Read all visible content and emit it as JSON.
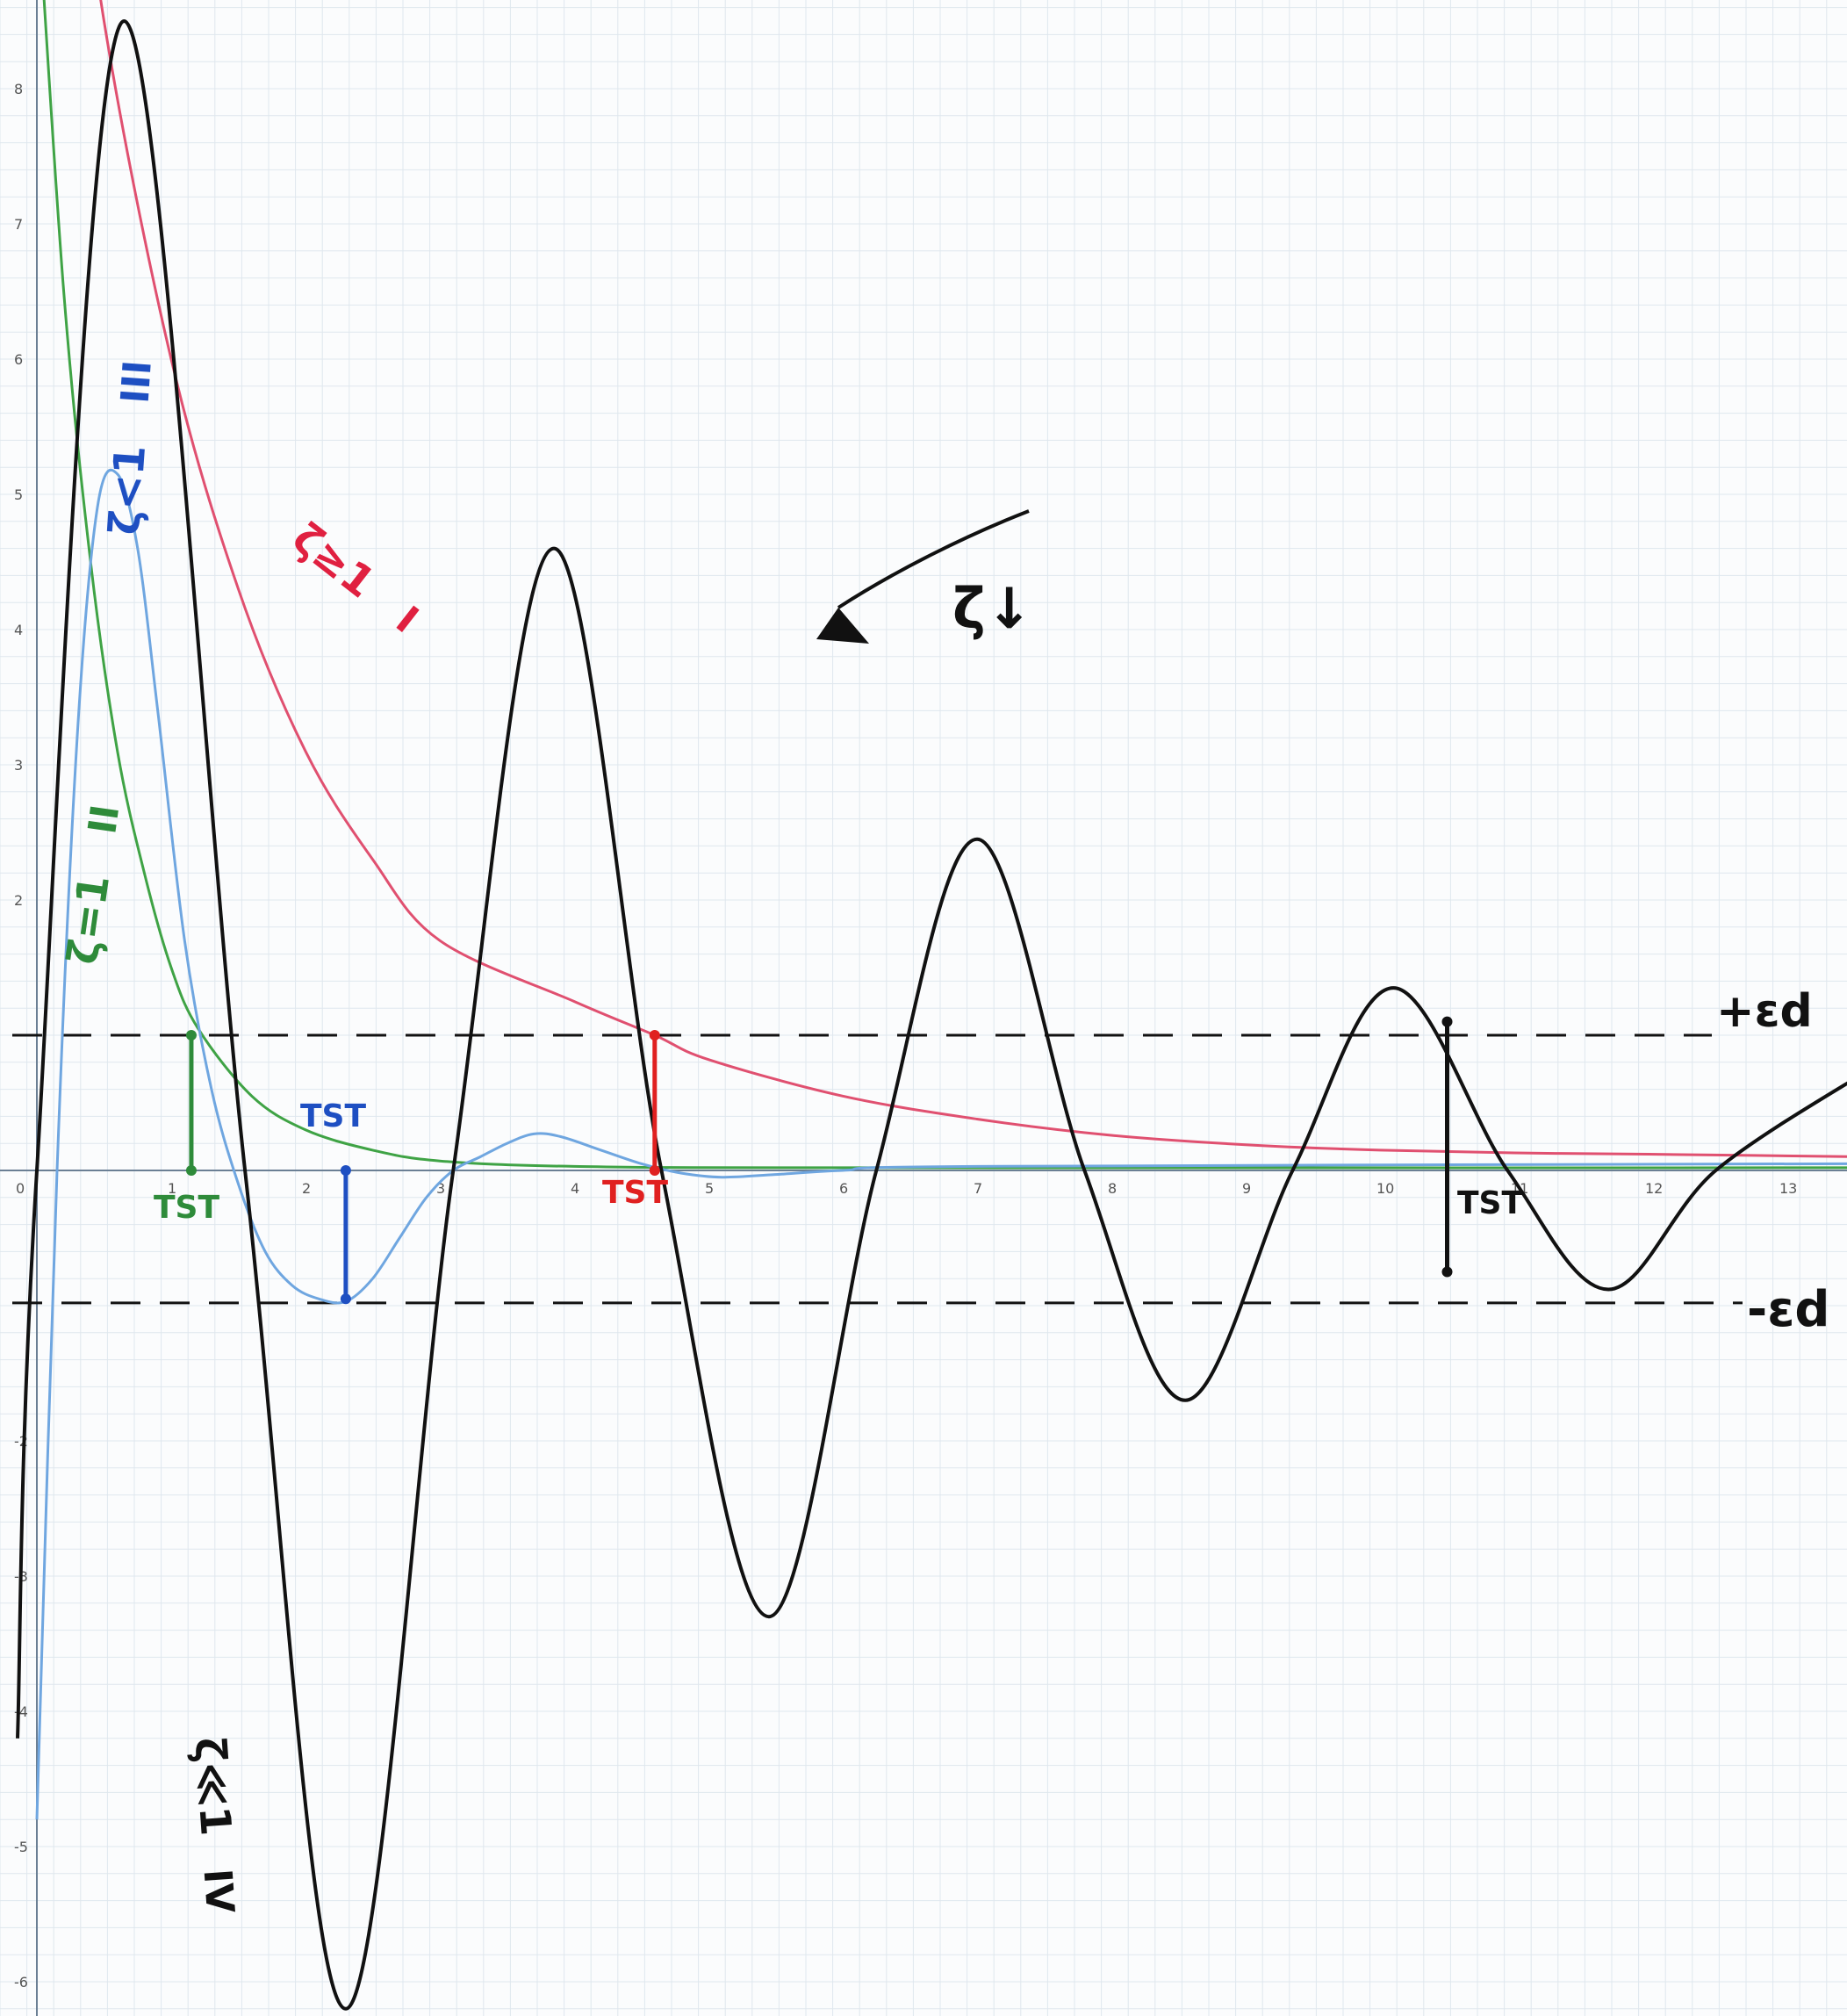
{
  "chart_data": {
    "type": "line",
    "title": "",
    "xlabel": "",
    "ylabel": "",
    "xlim": [
      0,
      13.7
    ],
    "ylim": [
      -6.3,
      8.6
    ],
    "grid": true,
    "x_ticks": [
      "0",
      "1",
      "2",
      "3",
      "4",
      "5",
      "6",
      "7",
      "8",
      "9",
      "10",
      "11",
      "12",
      "13"
    ],
    "y_ticks": [
      "8",
      "7",
      "6",
      "5",
      "4",
      "3",
      "2",
      "-2",
      "-3",
      "-4",
      "-5",
      "-6"
    ],
    "series": [
      {
        "name": "I",
        "label": "ζ≥1",
        "roman": "I",
        "color": "#e05070",
        "kind": "overdamped-decay",
        "x": [
          0.2,
          0.5,
          1,
          1.5,
          2,
          2.5,
          3,
          4,
          4.6,
          5,
          6,
          7,
          8,
          9,
          10,
          11,
          12,
          13.7
        ],
        "y": [
          10.9,
          8.5,
          6.0,
          4.3,
          3.1,
          2.3,
          1.7,
          1.25,
          1.0,
          0.82,
          0.55,
          0.38,
          0.26,
          0.19,
          0.15,
          0.13,
          0.12,
          0.1
        ]
      },
      {
        "name": "II",
        "label": "ζ=1",
        "roman": "II",
        "color": "#3fa345",
        "kind": "critically-damped-decay",
        "x": [
          0,
          0.2,
          0.4,
          0.6,
          0.8,
          1,
          1.2,
          1.6,
          2,
          2.5,
          3,
          4,
          6,
          13.7
        ],
        "y": [
          9.5,
          6.5,
          4.5,
          3.1,
          2.2,
          1.5,
          1.05,
          0.55,
          0.3,
          0.15,
          0.07,
          0.03,
          0.02,
          0.02
        ]
      },
      {
        "name": "III",
        "label": "ζ<1",
        "roman": "III",
        "color": "#6fa6e0",
        "kind": "underdamped",
        "x": [
          0,
          0.15,
          0.3,
          0.45,
          0.6,
          0.75,
          0.9,
          1.1,
          1.3,
          1.5,
          1.7,
          1.9,
          2.1,
          2.3,
          2.5,
          2.7,
          2.9,
          3.1,
          3.3,
          3.5,
          3.7,
          3.9,
          4.2,
          4.5,
          4.8,
          5.1,
          5.5,
          6,
          7,
          13.7
        ],
        "y": [
          -4.8,
          0.0,
          3.2,
          4.9,
          5.15,
          4.6,
          3.4,
          1.7,
          0.6,
          -0.1,
          -0.6,
          -0.85,
          -0.95,
          -0.97,
          -0.8,
          -0.5,
          -0.2,
          0.0,
          0.1,
          0.2,
          0.27,
          0.25,
          0.15,
          0.05,
          -0.02,
          -0.05,
          -0.03,
          0.0,
          0.03,
          0.05
        ]
      },
      {
        "name": "IV",
        "label": "ζ≪1",
        "roman": "IV",
        "color": "#111111",
        "kind": "lightly-damped",
        "extremes_x": [
          0.65,
          2.3,
          3.85,
          5.45,
          7.0,
          8.55,
          10.1,
          11.7,
          13.7
        ],
        "extremes_y": [
          8.5,
          -6.2,
          4.6,
          -3.3,
          2.45,
          -1.7,
          1.35,
          -0.88,
          0.78
        ],
        "zeros_x": [
          0,
          1.55,
          3.1,
          4.65,
          6.25,
          7.8,
          9.35,
          10.95,
          12.5
        ],
        "start_y": -4.2
      }
    ],
    "tolerance_band": {
      "upper": 1.0,
      "lower": -0.98,
      "upper_label": "+εd",
      "lower_label": "-εd"
    },
    "settling_markers": [
      {
        "series": "II",
        "x": 1.15,
        "y_from": 1.0,
        "y_to": 0.0,
        "label": "TST",
        "color": "#2e8b3a"
      },
      {
        "series": "III",
        "x": 2.3,
        "y_from": 0.0,
        "y_to": -0.95,
        "label": "TST",
        "color": "#1e4fc2"
      },
      {
        "series": "I",
        "x": 4.6,
        "y_from": 1.0,
        "y_to": 0.0,
        "label": "TST",
        "color": "#e02020"
      },
      {
        "series": "IV",
        "x": 10.5,
        "y_from": 1.1,
        "y_to": -0.75,
        "label": "TST",
        "color": "#111111"
      }
    ],
    "annotations": [
      {
        "text": "ζ↓",
        "color": "#111111"
      }
    ]
  }
}
